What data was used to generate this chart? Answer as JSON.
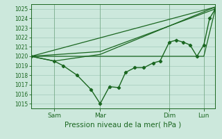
{
  "title": "Pression niveau de la mer( hPa )",
  "bg_color": "#cce8dc",
  "grid_color": "#aad0c0",
  "line_color": "#1a6620",
  "ylim": [
    1014.5,
    1025.5
  ],
  "yticks": [
    1015,
    1016,
    1017,
    1018,
    1019,
    1020,
    1021,
    1022,
    1023,
    1024,
    1025
  ],
  "xlim": [
    0,
    8.0
  ],
  "xtick_positions": [
    1,
    3,
    6,
    7.5
  ],
  "xtick_labels": [
    "Sam",
    "Mar",
    "Dim",
    "Lun"
  ],
  "series_main_x": [
    0,
    1,
    1.4,
    2.0,
    2.6,
    3.0,
    3.4,
    3.8,
    4.1,
    4.5,
    4.9,
    5.3,
    5.6,
    6.0,
    6.3,
    6.6,
    6.9,
    7.2,
    7.5,
    7.75,
    8.0
  ],
  "series_main_y": [
    1020.0,
    1019.5,
    1019.0,
    1018.0,
    1016.5,
    1015.0,
    1016.8,
    1016.7,
    1018.3,
    1018.8,
    1018.8,
    1019.3,
    1019.5,
    1021.5,
    1021.7,
    1021.5,
    1021.2,
    1020.0,
    1021.2,
    1024.0,
    1025.0
  ],
  "series_trend1_x": [
    0,
    7.5,
    8.0
  ],
  "series_trend1_y": [
    1020.0,
    1020.0,
    1025.0
  ],
  "series_trend2_x": [
    0,
    8.0
  ],
  "series_trend2_y": [
    1020.0,
    1025.2
  ],
  "series_trend3_x": [
    0,
    1.0,
    3.0,
    8.0
  ],
  "series_trend3_y": [
    1020.0,
    1019.5,
    1020.2,
    1025.2
  ],
  "series_trend4_x": [
    0,
    3.0,
    8.0
  ],
  "series_trend4_y": [
    1020.0,
    1020.5,
    1025.0
  ]
}
